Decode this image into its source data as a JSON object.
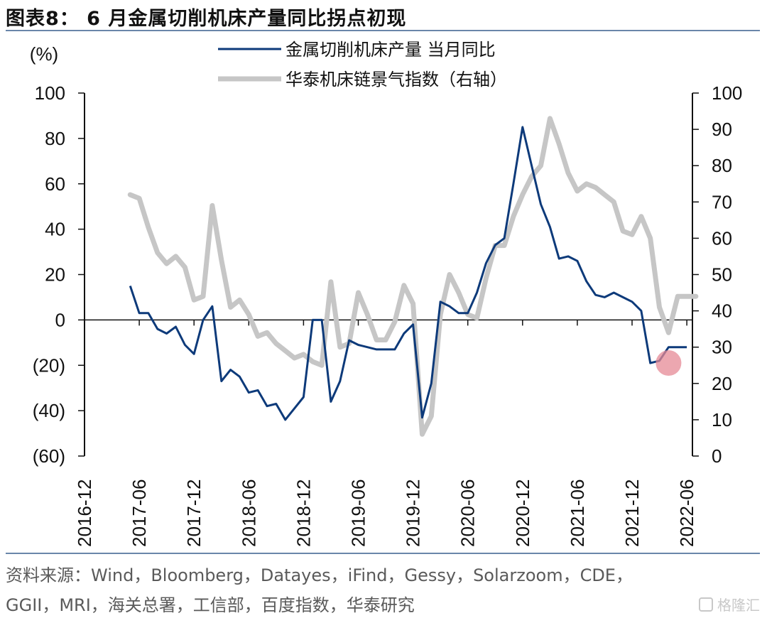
{
  "header": {
    "title": "图表8： 6 月金属切削机床产量同比拐点初现"
  },
  "footer": {
    "source_line1": "资料来源：Wind，Bloomberg，Datayes，iFind，Gessy，Solarzoom，CDE，",
    "source_line2": "GGII，MRI，海关总署，工信部，百度指数，华泰研究"
  },
  "watermark": {
    "text": "格隆汇",
    "icon": "gelonghui-logo-icon"
  },
  "colors": {
    "series1": "#0d3a7a",
    "series2": "#c6c6c6",
    "highlight": "#e58a95",
    "rule": "#6a86aa"
  },
  "chart_data": {
    "type": "line",
    "left_unit": "(%)",
    "left_ylim": [
      -60,
      100
    ],
    "left_ticks": [
      100,
      80,
      60,
      40,
      20,
      0,
      -20,
      -40,
      -60
    ],
    "left_tick_labels": [
      "100",
      "80",
      "60",
      "40",
      "20",
      "0",
      "(20)",
      "(40)",
      "(60)"
    ],
    "right_ylim": [
      0,
      100
    ],
    "right_ticks": [
      100,
      90,
      80,
      70,
      60,
      50,
      40,
      30,
      20,
      10,
      0
    ],
    "right_tick_labels": [
      "100",
      "90",
      "80",
      "70",
      "60",
      "50",
      "40",
      "30",
      "20",
      "10",
      "0"
    ],
    "x_tick_labels": [
      "2016-12",
      "2017-06",
      "2017-12",
      "2018-06",
      "2018-12",
      "2019-06",
      "2019-12",
      "2020-06",
      "2020-12",
      "2021-06",
      "2021-12",
      "2022-06"
    ],
    "x_start": "2016-12",
    "legend_placement": "top-center",
    "series": [
      {
        "name": "金属切削机床产量 当月同比",
        "axis": "left",
        "x": [
          "2017-05",
          "2017-06",
          "2017-07",
          "2017-08",
          "2017-09",
          "2017-10",
          "2017-11",
          "2017-12",
          "2018-01",
          "2018-02",
          "2018-03",
          "2018-04",
          "2018-05",
          "2018-06",
          "2018-07",
          "2018-08",
          "2018-09",
          "2018-10",
          "2018-11",
          "2018-12",
          "2019-01",
          "2019-02",
          "2019-03",
          "2019-04",
          "2019-05",
          "2019-06",
          "2019-07",
          "2019-08",
          "2019-09",
          "2019-10",
          "2019-11",
          "2019-12",
          "2020-01",
          "2020-02",
          "2020-03",
          "2020-04",
          "2020-05",
          "2020-06",
          "2020-07",
          "2020-08",
          "2020-09",
          "2020-10",
          "2020-11",
          "2020-12",
          "2021-01",
          "2021-02",
          "2021-03",
          "2021-04",
          "2021-05",
          "2021-06",
          "2021-07",
          "2021-08",
          "2021-09",
          "2021-10",
          "2021-11",
          "2021-12",
          "2022-01",
          "2022-02",
          "2022-03",
          "2022-04",
          "2022-05",
          "2022-06"
        ],
        "values": [
          15,
          3,
          3,
          -4,
          -6,
          -3,
          -11,
          -15,
          0,
          6,
          -27,
          -22,
          -25,
          -32,
          -31,
          -38,
          -37,
          -44,
          -39,
          -34,
          0,
          0,
          -36,
          -27,
          -9,
          -11,
          -12,
          -13,
          -13,
          -13,
          -6,
          -2,
          -43,
          -28,
          8,
          6,
          3,
          3,
          12,
          25,
          33,
          36,
          60,
          85,
          68,
          51,
          41,
          27,
          28,
          26,
          17,
          11,
          10,
          12,
          10,
          8,
          4,
          -19,
          -18,
          -12,
          -12,
          -12
        ]
      },
      {
        "name": "华泰机床链景气指数（右轴）",
        "axis": "right",
        "x": [
          "2017-05",
          "2017-06",
          "2017-07",
          "2017-08",
          "2017-09",
          "2017-10",
          "2017-11",
          "2017-12",
          "2018-01",
          "2018-02",
          "2018-03",
          "2018-04",
          "2018-05",
          "2018-06",
          "2018-07",
          "2018-08",
          "2018-09",
          "2018-10",
          "2018-11",
          "2018-12",
          "2019-01",
          "2019-02",
          "2019-03",
          "2019-04",
          "2019-05",
          "2019-06",
          "2019-07",
          "2019-08",
          "2019-09",
          "2019-10",
          "2019-11",
          "2019-12",
          "2020-01",
          "2020-02",
          "2020-03",
          "2020-04",
          "2020-05",
          "2020-06",
          "2020-07",
          "2020-08",
          "2020-09",
          "2020-10",
          "2020-11",
          "2020-12",
          "2021-01",
          "2021-02",
          "2021-03",
          "2021-04",
          "2021-05",
          "2021-06",
          "2021-07",
          "2021-08",
          "2021-09",
          "2021-10",
          "2021-11",
          "2021-12",
          "2022-01",
          "2022-02",
          "2022-03",
          "2022-04",
          "2022-05",
          "2022-06",
          "2022-07"
        ],
        "values": [
          72,
          71,
          63,
          56,
          53,
          55,
          52,
          43,
          44,
          69,
          54,
          41,
          43,
          39,
          33,
          34,
          31,
          29,
          27,
          28,
          26,
          25,
          48,
          30,
          31,
          45,
          39,
          32,
          32,
          37,
          47,
          42,
          6,
          11,
          39,
          50,
          45,
          39,
          38,
          49,
          58,
          58,
          66,
          72,
          77,
          80,
          93,
          86,
          78,
          73,
          75,
          74,
          72,
          70,
          62,
          61,
          66,
          60,
          41,
          34,
          44,
          44,
          44
        ]
      }
    ],
    "annotation": {
      "type": "circle",
      "x": "2022-04",
      "y": -19,
      "axis": "left"
    }
  }
}
